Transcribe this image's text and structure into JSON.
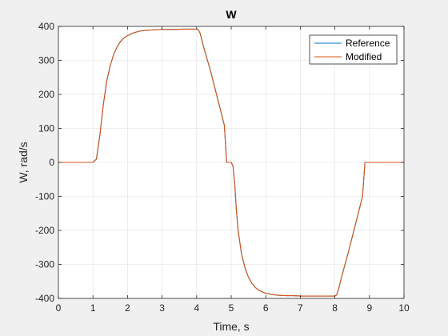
{
  "chart_data": {
    "type": "line",
    "title": "W",
    "xlabel": "Time, s",
    "ylabel": "W, rad/s",
    "xlim": [
      0,
      10
    ],
    "ylim": [
      -400,
      400
    ],
    "xticks": [
      "0",
      "1",
      "2",
      "3",
      "4",
      "5",
      "6",
      "7",
      "8",
      "9",
      "10"
    ],
    "yticks": [
      "-400",
      "-300",
      "-200",
      "-100",
      "0",
      "100",
      "200",
      "300",
      "400"
    ],
    "grid": true,
    "legend_position": "top-right",
    "series": [
      {
        "name": "Reference",
        "color": "#0072BD",
        "x": [
          0,
          1.0,
          1.1,
          1.2,
          1.3,
          1.4,
          1.5,
          1.6,
          1.7,
          1.8,
          1.9,
          2.0,
          2.2,
          2.4,
          2.6,
          2.8,
          3.0,
          3.3,
          3.6,
          3.9,
          4.0,
          4.05,
          4.1,
          4.2,
          4.4,
          4.6,
          4.8,
          4.87,
          5.0,
          5.05,
          5.1,
          5.15,
          5.2,
          5.3,
          5.4,
          5.5,
          5.6,
          5.7,
          5.8,
          5.9,
          6.0,
          6.2,
          6.4,
          6.6,
          6.8,
          7.0,
          7.5,
          8.0,
          8.05,
          8.1,
          8.2,
          8.4,
          8.6,
          8.8,
          8.87,
          9.0,
          10
        ],
        "y": [
          0,
          0,
          10,
          80,
          170,
          240,
          285,
          318,
          340,
          356,
          366,
          373,
          382,
          387,
          389,
          390,
          391,
          391,
          392,
          392,
          392,
          390,
          380,
          340,
          270,
          190,
          110,
          0,
          0,
          -10,
          -60,
          -140,
          -200,
          -270,
          -310,
          -338,
          -356,
          -368,
          -376,
          -381,
          -385,
          -389,
          -391,
          -392,
          -392,
          -393,
          -393,
          -393,
          -390,
          -375,
          -335,
          -260,
          -180,
          -100,
          0,
          0,
          0
        ]
      },
      {
        "name": "Modified",
        "color": "#D95319",
        "x": [
          0,
          1.0,
          1.1,
          1.2,
          1.3,
          1.4,
          1.5,
          1.6,
          1.7,
          1.8,
          1.9,
          2.0,
          2.2,
          2.4,
          2.6,
          2.8,
          3.0,
          3.3,
          3.6,
          3.9,
          4.0,
          4.05,
          4.1,
          4.2,
          4.4,
          4.6,
          4.8,
          4.87,
          5.0,
          5.05,
          5.1,
          5.15,
          5.2,
          5.3,
          5.4,
          5.5,
          5.6,
          5.7,
          5.8,
          5.9,
          6.0,
          6.2,
          6.4,
          6.6,
          6.8,
          7.0,
          7.5,
          8.0,
          8.05,
          8.1,
          8.2,
          8.4,
          8.6,
          8.8,
          8.87,
          9.0,
          10
        ],
        "y": [
          0,
          0,
          10,
          80,
          170,
          240,
          285,
          318,
          340,
          356,
          366,
          373,
          382,
          387,
          389,
          390,
          391,
          391,
          392,
          392,
          392,
          390,
          380,
          340,
          270,
          190,
          110,
          0,
          0,
          -10,
          -60,
          -140,
          -200,
          -270,
          -310,
          -338,
          -356,
          -368,
          -376,
          -381,
          -385,
          -389,
          -391,
          -392,
          -392,
          -393,
          -393,
          -393,
          -390,
          -375,
          -335,
          -260,
          -180,
          -100,
          0,
          0,
          0
        ]
      }
    ]
  }
}
